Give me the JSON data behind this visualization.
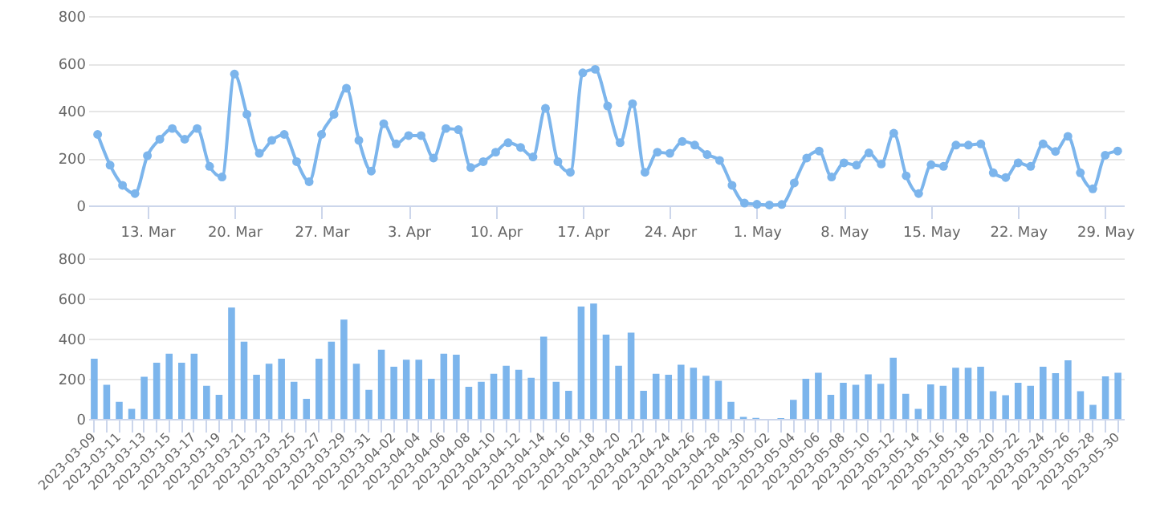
{
  "chart_data": [
    {
      "type": "line",
      "color": "#7cb5ec",
      "marker": "circle",
      "grid": "y",
      "x": [
        "2023-03-09",
        "2023-03-10",
        "2023-03-11",
        "2023-03-12",
        "2023-03-13",
        "2023-03-14",
        "2023-03-15",
        "2023-03-16",
        "2023-03-17",
        "2023-03-18",
        "2023-03-19",
        "2023-03-20",
        "2023-03-21",
        "2023-03-22",
        "2023-03-23",
        "2023-03-24",
        "2023-03-25",
        "2023-03-26",
        "2023-03-27",
        "2023-03-28",
        "2023-03-29",
        "2023-03-30",
        "2023-03-31",
        "2023-04-01",
        "2023-04-02",
        "2023-04-03",
        "2023-04-04",
        "2023-04-05",
        "2023-04-06",
        "2023-04-07",
        "2023-04-08",
        "2023-04-09",
        "2023-04-10",
        "2023-04-11",
        "2023-04-12",
        "2023-04-13",
        "2023-04-14",
        "2023-04-15",
        "2023-04-16",
        "2023-04-17",
        "2023-04-18",
        "2023-04-19",
        "2023-04-20",
        "2023-04-21",
        "2023-04-22",
        "2023-04-23",
        "2023-04-24",
        "2023-04-25",
        "2023-04-26",
        "2023-04-27",
        "2023-04-28",
        "2023-04-29",
        "2023-04-30",
        "2023-05-01",
        "2023-05-02",
        "2023-05-03",
        "2023-05-04",
        "2023-05-05",
        "2023-05-06",
        "2023-05-07",
        "2023-05-08",
        "2023-05-09",
        "2023-05-10",
        "2023-05-11",
        "2023-05-12",
        "2023-05-13",
        "2023-05-14",
        "2023-05-15",
        "2023-05-16",
        "2023-05-17",
        "2023-05-18",
        "2023-05-19",
        "2023-05-20",
        "2023-05-21",
        "2023-05-22",
        "2023-05-23",
        "2023-05-24",
        "2023-05-25",
        "2023-05-26",
        "2023-05-27",
        "2023-05-28",
        "2023-05-29",
        "2023-05-30"
      ],
      "values": [
        300,
        170,
        85,
        50,
        210,
        280,
        325,
        280,
        325,
        165,
        120,
        555,
        385,
        220,
        275,
        300,
        185,
        100,
        300,
        385,
        495,
        275,
        145,
        345,
        260,
        295,
        295,
        200,
        325,
        320,
        160,
        185,
        225,
        265,
        245,
        205,
        410,
        185,
        140,
        560,
        575,
        420,
        265,
        430,
        140,
        225,
        220,
        270,
        255,
        215,
        190,
        85,
        10,
        5,
        2,
        4,
        95,
        200,
        230,
        120,
        180,
        170,
        222,
        175,
        305,
        125,
        50,
        172,
        165,
        255,
        255,
        260,
        138,
        118,
        180,
        165,
        260,
        228,
        292,
        138,
        70,
        212,
        230
      ],
      "xlim": [
        "2023-03-08T06:00",
        "2023-05-30T12:00"
      ],
      "xticks": [
        {
          "value": "2023-03-13",
          "label": "13. Mar"
        },
        {
          "value": "2023-03-20",
          "label": "20. Mar"
        },
        {
          "value": "2023-03-27",
          "label": "27. Mar"
        },
        {
          "value": "2023-04-03",
          "label": "3. Apr"
        },
        {
          "value": "2023-04-10",
          "label": "10. Apr"
        },
        {
          "value": "2023-04-17",
          "label": "17. Apr"
        },
        {
          "value": "2023-04-24",
          "label": "24. Apr"
        },
        {
          "value": "2023-05-01",
          "label": "1. May"
        },
        {
          "value": "2023-05-08",
          "label": "8. May"
        },
        {
          "value": "2023-05-15",
          "label": "15. May"
        },
        {
          "value": "2023-05-22",
          "label": "22. May"
        },
        {
          "value": "2023-05-29",
          "label": "29. May"
        }
      ],
      "ylim": [
        0,
        800
      ],
      "yticks": [
        0,
        200,
        400,
        600,
        800
      ]
    },
    {
      "type": "bar",
      "color": "#7cb5ec",
      "grid": "y",
      "categories": [
        "2023-03-09",
        null,
        "2023-03-11",
        null,
        "2023-03-13",
        null,
        "2023-03-15",
        null,
        "2023-03-17",
        null,
        "2023-03-19",
        null,
        "2023-03-21",
        null,
        "2023-03-23",
        null,
        "2023-03-25",
        null,
        "2023-03-27",
        null,
        "2023-03-29",
        null,
        "2023-03-31",
        null,
        "2023-04-02",
        null,
        "2023-04-04",
        null,
        "2023-04-06",
        null,
        "2023-04-08",
        null,
        "2023-04-10",
        null,
        "2023-04-12",
        null,
        "2023-04-14",
        null,
        "2023-04-16",
        null,
        "2023-04-18",
        null,
        "2023-04-20",
        null,
        "2023-04-22",
        null,
        "2023-04-24",
        null,
        "2023-04-26",
        null,
        "2023-04-28",
        null,
        "2023-04-30",
        null,
        "2023-05-02",
        null,
        "2023-05-04",
        null,
        "2023-05-06",
        null,
        "2023-05-08",
        null,
        "2023-05-10",
        null,
        "2023-05-12",
        null,
        "2023-05-14",
        null,
        "2023-05-16",
        null,
        "2023-05-18",
        null,
        "2023-05-20",
        null,
        "2023-05-22",
        null,
        "2023-05-24",
        null,
        "2023-05-26",
        null,
        "2023-05-28",
        null,
        "2023-05-30"
      ],
      "values": [
        300,
        170,
        85,
        50,
        210,
        280,
        325,
        280,
        325,
        165,
        120,
        555,
        385,
        220,
        275,
        300,
        185,
        100,
        300,
        385,
        495,
        275,
        145,
        345,
        260,
        295,
        295,
        200,
        325,
        320,
        160,
        185,
        225,
        265,
        245,
        205,
        410,
        185,
        140,
        560,
        575,
        420,
        265,
        430,
        140,
        225,
        220,
        270,
        255,
        215,
        190,
        85,
        10,
        5,
        null,
        4,
        95,
        200,
        230,
        120,
        180,
        170,
        222,
        175,
        305,
        125,
        50,
        172,
        165,
        255,
        255,
        260,
        138,
        118,
        180,
        165,
        260,
        228,
        292,
        138,
        70,
        212,
        230
      ],
      "ylim": [
        0,
        800
      ],
      "yticks": [
        0,
        200,
        400,
        600,
        800
      ]
    }
  ]
}
